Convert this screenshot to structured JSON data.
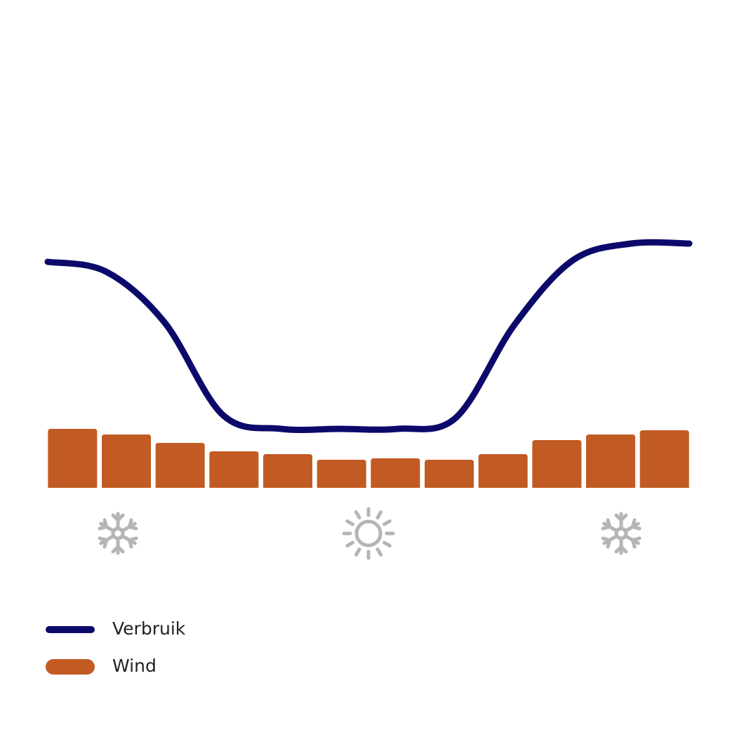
{
  "chart_data": {
    "type": "bar",
    "categories": [
      null,
      null,
      null,
      null,
      null,
      null,
      null,
      null,
      null,
      null,
      null,
      null
    ],
    "series": [
      {
        "name": "Verbruik",
        "type": "line",
        "color": "#0b0a6b",
        "values": [
          80.5,
          77,
          59,
          26,
          21,
          21,
          21,
          25,
          58,
          81,
          87,
          87
        ]
      },
      {
        "name": "Wind",
        "type": "bar",
        "color": "#c25a24",
        "values": [
          21,
          19,
          16,
          13,
          12,
          10,
          10.5,
          10,
          12,
          17,
          19,
          20.5
        ]
      }
    ],
    "ylim": [
      0,
      100
    ]
  }
}
